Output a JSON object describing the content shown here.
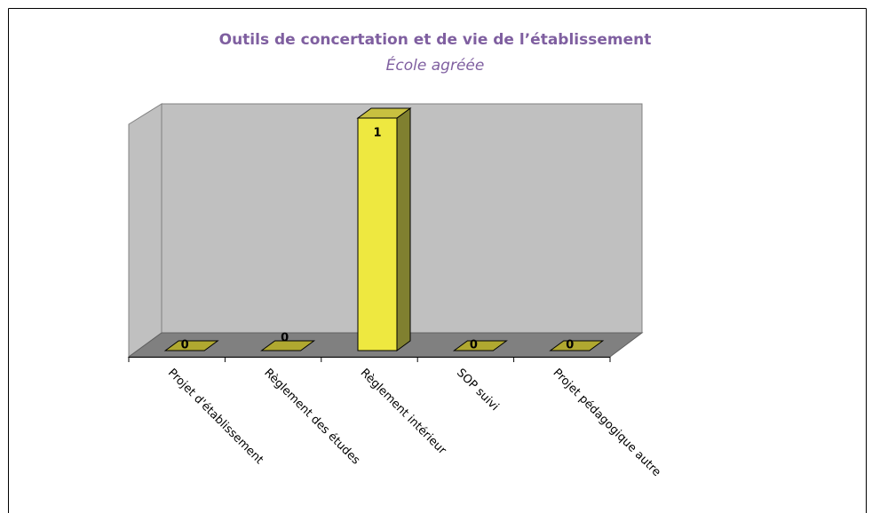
{
  "chart_data": {
    "type": "bar3d",
    "title": "Outils de concertation et de vie de l’établissement",
    "subtitle": "École agréée",
    "categories": [
      "Projet d'établissement",
      "Règlement des études",
      "Règlement intérieur",
      "SOP suivi",
      "Projet pédagogique autre"
    ],
    "values": [
      0,
      0,
      1,
      0,
      0
    ],
    "color": "#eee840",
    "ylim": [
      0,
      1
    ]
  }
}
